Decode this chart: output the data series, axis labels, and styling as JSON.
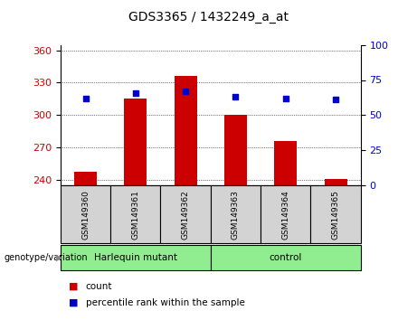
{
  "title": "GDS3365 / 1432249_a_at",
  "samples": [
    "GSM149360",
    "GSM149361",
    "GSM149362",
    "GSM149363",
    "GSM149364",
    "GSM149365"
  ],
  "counts": [
    248,
    315,
    336,
    300,
    276,
    241
  ],
  "percentile_ranks": [
    62,
    66,
    67,
    63,
    62,
    61
  ],
  "ylim_left": [
    235,
    365
  ],
  "yticks_left": [
    240,
    270,
    300,
    330,
    360
  ],
  "ylim_right": [
    0,
    100
  ],
  "yticks_right": [
    0,
    25,
    50,
    75,
    100
  ],
  "bar_color": "#cc0000",
  "dot_color": "#0000cc",
  "bar_width": 0.45,
  "group_label": "genotype/variation",
  "legend_count_label": "count",
  "legend_pct_label": "percentile rank within the sample",
  "tick_label_color_left": "#cc0000",
  "tick_label_color_right": "#0000cc",
  "bg_color_xticklabels": "#d3d3d3",
  "title_fontsize": 10,
  "axis_fontsize": 8,
  "dot_size": 25,
  "fig_width": 4.61,
  "fig_height": 3.54,
  "groups_info": [
    {
      "label": "Harlequin mutant",
      "start": 0,
      "end": 3,
      "color": "#90ee90"
    },
    {
      "label": "control",
      "start": 3,
      "end": 6,
      "color": "#90ee90"
    }
  ]
}
